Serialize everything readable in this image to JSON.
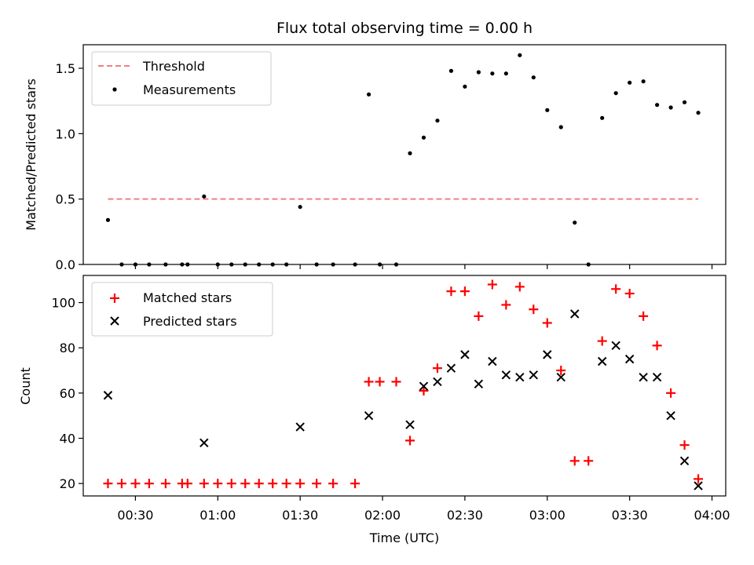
{
  "chart_data": [
    {
      "type": "line",
      "title": "Flux total observing time = 0.00 h",
      "xlabel": "",
      "ylabel": "Matched/Predicted stars",
      "ylim": [
        0,
        1.68
      ],
      "yticks": [
        "0.0",
        "0.5",
        "1.0",
        "1.5"
      ],
      "ytick_values": [
        0,
        0.5,
        1.0,
        1.5
      ],
      "xlim": [
        "00:11",
        "04:05"
      ],
      "grid": false,
      "legend": "top-left",
      "series": [
        {
          "name": "Threshold",
          "kind": "line",
          "style": "dashed",
          "color": "#f08080",
          "x": [
            "00:20",
            "03:55"
          ],
          "y": [
            0.5,
            0.5
          ]
        },
        {
          "name": "Measurements",
          "kind": "scatter",
          "marker": "dot",
          "color": "#000000",
          "x": [
            "00:20",
            "00:25",
            "00:30",
            "00:35",
            "00:41",
            "00:47",
            "00:49",
            "00:55",
            "01:00",
            "01:05",
            "01:10",
            "01:15",
            "01:20",
            "01:25",
            "01:30",
            "01:36",
            "01:42",
            "01:50",
            "01:55",
            "01:59",
            "02:05",
            "02:10",
            "02:15",
            "02:20",
            "02:25",
            "02:30",
            "02:35",
            "02:40",
            "02:45",
            "02:50",
            "02:55",
            "03:00",
            "03:05",
            "03:10",
            "03:15",
            "03:20",
            "03:25",
            "03:30",
            "03:35",
            "03:40",
            "03:45",
            "03:50",
            "03:55"
          ],
          "y": [
            0.34,
            0,
            0,
            0,
            0,
            0,
            0,
            0.52,
            0,
            0,
            0,
            0,
            0,
            0,
            0.44,
            0,
            0,
            0,
            1.3,
            0,
            0,
            0.85,
            0.97,
            1.1,
            1.48,
            1.36,
            1.47,
            1.46,
            1.46,
            1.6,
            1.43,
            1.18,
            1.05,
            0.32,
            0,
            1.12,
            1.31,
            1.39,
            1.4,
            1.22,
            1.2,
            1.24,
            1.16
          ]
        }
      ]
    },
    {
      "type": "scatter",
      "title": "",
      "xlabel": "Time (UTC)",
      "ylabel": "Count",
      "ylim": [
        14.5,
        112
      ],
      "yticks": [
        "20",
        "40",
        "60",
        "80",
        "100"
      ],
      "ytick_values": [
        20,
        40,
        60,
        80,
        100
      ],
      "xlim": [
        "00:11",
        "04:05"
      ],
      "xticks": [
        "00:30",
        "01:00",
        "01:30",
        "02:00",
        "02:30",
        "03:00",
        "03:30",
        "04:00"
      ],
      "grid": false,
      "legend": "top-left",
      "series": [
        {
          "name": "Matched stars",
          "marker": "plus",
          "color": "#ff0000",
          "x": [
            "00:20",
            "00:25",
            "00:30",
            "00:35",
            "00:41",
            "00:47",
            "00:49",
            "00:55",
            "01:00",
            "01:05",
            "01:10",
            "01:15",
            "01:20",
            "01:25",
            "01:30",
            "01:36",
            "01:42",
            "01:50",
            "01:55",
            "01:59",
            "02:05",
            "02:10",
            "02:15",
            "02:20",
            "02:25",
            "02:30",
            "02:35",
            "02:40",
            "02:45",
            "02:50",
            "02:55",
            "03:00",
            "03:05",
            "03:10",
            "03:15",
            "03:20",
            "03:25",
            "03:30",
            "03:35",
            "03:40",
            "03:45",
            "03:50",
            "03:55"
          ],
          "y": [
            20,
            20,
            20,
            20,
            20,
            20,
            20,
            20,
            20,
            20,
            20,
            20,
            20,
            20,
            20,
            20,
            20,
            20,
            65,
            65,
            65,
            39,
            61,
            71,
            105,
            105,
            94,
            108,
            99,
            107,
            97,
            91,
            70,
            30,
            30,
            83,
            106,
            104,
            94,
            81,
            60,
            37,
            22
          ]
        },
        {
          "name": "Predicted stars",
          "marker": "x",
          "color": "#000000",
          "x": [
            "00:20",
            "00:55",
            "01:30",
            "01:55",
            "02:10",
            "02:15",
            "02:20",
            "02:25",
            "02:30",
            "02:35",
            "02:40",
            "02:45",
            "02:50",
            "02:55",
            "03:00",
            "03:05",
            "03:10",
            "03:20",
            "03:25",
            "03:30",
            "03:35",
            "03:40",
            "03:45",
            "03:50",
            "03:55"
          ],
          "y": [
            59,
            38,
            45,
            50,
            46,
            63,
            65,
            71,
            77,
            64,
            74,
            68,
            67,
            68,
            77,
            67,
            95,
            74,
            81,
            75,
            67,
            67,
            50,
            30,
            19
          ]
        }
      ]
    }
  ]
}
